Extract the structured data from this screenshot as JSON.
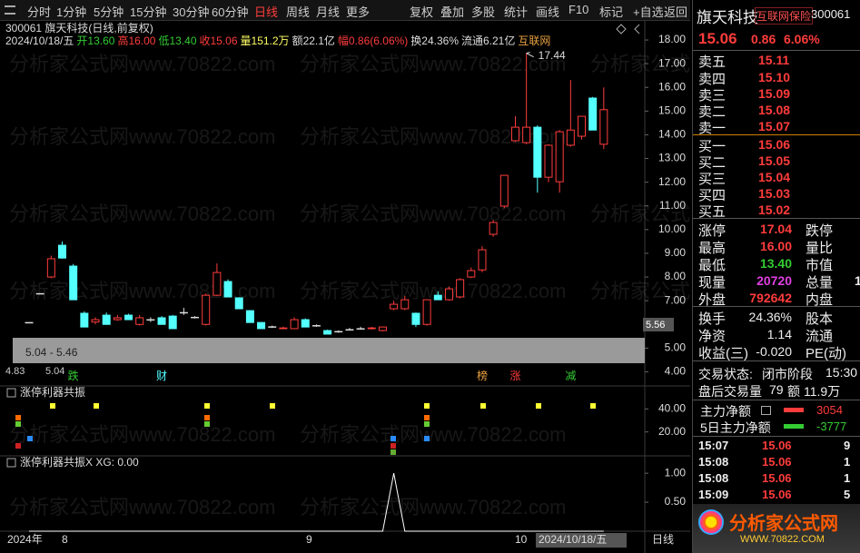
{
  "toolbar": {
    "left": [
      "分时",
      "1分钟",
      "5分钟",
      "15分钟",
      "30分钟",
      "60分钟",
      "日线",
      "周线",
      "月线",
      "更多"
    ],
    "active_index": 6,
    "right": [
      "复权",
      "叠加",
      "多股",
      "统计",
      "画线",
      "F10",
      "标记",
      "+自选",
      "返回"
    ]
  },
  "watermark": "分析家公式网www.70822.com",
  "kline": {
    "title": "300061 旗天科技(日线,前复权)",
    "info": [
      {
        "text": "2024/10/18/五",
        "color": "#dddddd"
      },
      {
        "text": "开13.60",
        "color": "#33cc33"
      },
      {
        "text": "高16.00",
        "color": "#ff3c3c"
      },
      {
        "text": "低13.40",
        "color": "#33cc33"
      },
      {
        "text": "收15.06",
        "color": "#ff3c3c"
      },
      {
        "text": "量151.2万",
        "color": "#ffff66"
      },
      {
        "text": "额22.1亿",
        "color": "#dddddd"
      },
      {
        "text": "幅0.86(6.06%)",
        "color": "#ff3c3c"
      },
      {
        "text": "换24.36%",
        "color": "#dddddd"
      },
      {
        "text": "流通6.21亿",
        "color": "#dddddd"
      },
      {
        "text": "互联网",
        "color": "#e8a040"
      }
    ],
    "ylim": [
      3.5,
      18.5
    ],
    "yticks": [
      {
        "value": 18,
        "label": "18.00"
      },
      {
        "value": 17,
        "label": "17.00"
      },
      {
        "value": 16,
        "label": "16.00"
      },
      {
        "value": 15,
        "label": "15.00"
      },
      {
        "value": 14,
        "label": "14.00"
      },
      {
        "value": 13,
        "label": "13.00"
      },
      {
        "value": 12,
        "label": "12.00"
      },
      {
        "value": 11,
        "label": "11.00"
      },
      {
        "value": 10,
        "label": "10.00"
      },
      {
        "value": 9,
        "label": "9.00"
      },
      {
        "value": 8,
        "label": "8.00"
      },
      {
        "value": 7,
        "label": "7.00"
      },
      {
        "value": 5,
        "label": "5.00"
      },
      {
        "value": 4,
        "label": "4.00"
      }
    ],
    "cursor_label": "5.56",
    "band_label": "5.04 - 5.46",
    "low_labels": [
      "4.83",
      "5.04"
    ],
    "peak_label": "17.44",
    "peak_index": 45,
    "candles": [
      {
        "open": 6.08,
        "high": 6.08,
        "low": 6.08,
        "close": 6.08
      },
      {
        "open": 7.3,
        "high": 7.3,
        "low": 7.3,
        "close": 7.3
      },
      {
        "open": 8.0,
        "high": 8.9,
        "low": 7.95,
        "close": 8.77
      },
      {
        "open": 9.34,
        "high": 9.5,
        "low": 8.77,
        "close": 8.8
      },
      {
        "open": 8.46,
        "high": 8.55,
        "low": 7.04,
        "close": 7.04
      },
      {
        "open": 6.47,
        "high": 6.55,
        "low": 5.89,
        "close": 5.89
      },
      {
        "open": 6.1,
        "high": 6.3,
        "low": 6.0,
        "close": 6.2
      },
      {
        "open": 6.39,
        "high": 6.5,
        "low": 6.0,
        "close": 6.0
      },
      {
        "open": 6.2,
        "high": 6.4,
        "low": 6.15,
        "close": 6.28
      },
      {
        "open": 6.39,
        "high": 6.45,
        "low": 6.2,
        "close": 6.2
      },
      {
        "open": 6.0,
        "high": 6.4,
        "low": 5.95,
        "close": 6.28
      },
      {
        "open": 6.2,
        "high": 6.3,
        "low": 6.1,
        "close": 6.2
      },
      {
        "open": 6.28,
        "high": 6.35,
        "low": 6.0,
        "close": 6.0
      },
      {
        "open": 6.35,
        "high": 6.4,
        "low": 5.82,
        "close": 5.82
      },
      {
        "open": 6.5,
        "high": 6.7,
        "low": 6.4,
        "close": 6.5
      },
      {
        "open": 6.3,
        "high": 6.35,
        "low": 6.25,
        "close": 6.3
      },
      {
        "open": 6.0,
        "high": 7.3,
        "low": 5.95,
        "close": 7.23
      },
      {
        "open": 7.23,
        "high": 8.57,
        "low": 7.2,
        "close": 8.19
      },
      {
        "open": 7.81,
        "high": 7.9,
        "low": 7.16,
        "close": 7.16
      },
      {
        "open": 7.12,
        "high": 7.15,
        "low": 6.66,
        "close": 6.66
      },
      {
        "open": 6.58,
        "high": 6.6,
        "low": 6.08,
        "close": 6.08
      },
      {
        "open": 6.08,
        "high": 6.1,
        "low": 5.82,
        "close": 5.82
      },
      {
        "open": 5.9,
        "high": 5.95,
        "low": 5.85,
        "close": 5.9
      },
      {
        "open": 5.82,
        "high": 5.9,
        "low": 5.8,
        "close": 5.85
      },
      {
        "open": 5.82,
        "high": 6.3,
        "low": 5.8,
        "close": 6.2
      },
      {
        "open": 6.2,
        "high": 6.25,
        "low": 5.89,
        "close": 5.89
      },
      {
        "open": 5.95,
        "high": 6.0,
        "low": 5.9,
        "close": 5.95
      },
      {
        "open": 5.74,
        "high": 5.78,
        "low": 5.59,
        "close": 5.59
      },
      {
        "open": 5.7,
        "high": 5.75,
        "low": 5.65,
        "close": 5.7
      },
      {
        "open": 5.78,
        "high": 5.85,
        "low": 5.75,
        "close": 5.78
      },
      {
        "open": 5.82,
        "high": 5.9,
        "low": 5.8,
        "close": 5.82
      },
      {
        "open": 5.82,
        "high": 5.9,
        "low": 5.78,
        "close": 5.85
      },
      {
        "open": 5.74,
        "high": 5.9,
        "low": 5.7,
        "close": 5.89
      },
      {
        "open": 6.66,
        "high": 7.0,
        "low": 6.6,
        "close": 6.85
      },
      {
        "open": 6.66,
        "high": 7.2,
        "low": 6.6,
        "close": 7.04
      },
      {
        "open": 6.47,
        "high": 6.5,
        "low": 5.89,
        "close": 6.0
      },
      {
        "open": 6.0,
        "high": 7.0,
        "low": 5.95,
        "close": 7.04
      },
      {
        "open": 7.23,
        "high": 7.4,
        "low": 7.04,
        "close": 7.04
      },
      {
        "open": 7.04,
        "high": 7.6,
        "low": 7.0,
        "close": 7.5
      },
      {
        "open": 7.16,
        "high": 7.95,
        "low": 7.1,
        "close": 7.89
      },
      {
        "open": 8.0,
        "high": 8.4,
        "low": 7.95,
        "close": 8.27
      },
      {
        "open": 8.3,
        "high": 9.3,
        "low": 8.2,
        "close": 9.15
      },
      {
        "open": 9.8,
        "high": 10.4,
        "low": 9.7,
        "close": 10.3
      },
      {
        "open": 10.99,
        "high": 12.3,
        "low": 10.9,
        "close": 12.29
      },
      {
        "open": 13.75,
        "high": 14.78,
        "low": 13.7,
        "close": 14.32
      },
      {
        "open": 13.67,
        "high": 17.44,
        "low": 13.6,
        "close": 14.32
      },
      {
        "open": 14.32,
        "high": 14.4,
        "low": 11.56,
        "close": 12.21
      },
      {
        "open": 12.21,
        "high": 13.6,
        "low": 12.0,
        "close": 13.56
      },
      {
        "open": 12.02,
        "high": 14.2,
        "low": 11.56,
        "close": 14.13
      },
      {
        "open": 13.56,
        "high": 16.31,
        "low": 13.5,
        "close": 14.2
      },
      {
        "open": 13.94,
        "high": 14.7,
        "low": 13.8,
        "close": 14.78
      },
      {
        "open": 15.55,
        "high": 15.6,
        "low": 14.2,
        "close": 14.2
      },
      {
        "open": 13.6,
        "high": 16.0,
        "low": 13.4,
        "close": 15.06
      }
    ],
    "signals": [
      {
        "text": "跌",
        "index": 4,
        "color": "#33cc33"
      },
      {
        "text": "财",
        "index": 12,
        "color": "#54ffff"
      },
      {
        "text": "榜",
        "index": 41,
        "color": "#e8a040"
      },
      {
        "text": "涨",
        "index": 44,
        "color": "#ff3c3c"
      },
      {
        "text": "减",
        "index": 49,
        "color": "#33cc33"
      }
    ],
    "x_labels": [
      "2024年",
      "8",
      "9",
      "10",
      "2024/10/18/五",
      "日线"
    ]
  },
  "indicator1": {
    "title": "涨停利器共振",
    "ylim": [
      0,
      60
    ],
    "yticks": [
      {
        "value": 40,
        "label": "40.00"
      },
      {
        "value": 20,
        "label": "20.00"
      }
    ]
  },
  "indicator2": {
    "title": "涨停利器共振X XG: 0.00",
    "ylim": [
      0,
      1.3
    ],
    "yticks": [
      {
        "value": 1,
        "label": "1.00"
      },
      {
        "value": 0.5,
        "label": "0.50"
      }
    ],
    "values": [
      0,
      0,
      0,
      0,
      0,
      0,
      0,
      0,
      0,
      0,
      0,
      0,
      0,
      0,
      0,
      0,
      0,
      0,
      0,
      0,
      0,
      0,
      0,
      0,
      0,
      0,
      0,
      0,
      0,
      0,
      0,
      0,
      0,
      1,
      0,
      0,
      0,
      0,
      0,
      0,
      0,
      0,
      0,
      0,
      0,
      0,
      0,
      0,
      0,
      0,
      0,
      0,
      0
    ]
  },
  "quote": {
    "name": "旗天科技",
    "tag": "互联网保险",
    "code": "300061",
    "price": "15.06",
    "change": "0.86",
    "pct": "6.06%"
  },
  "sell": [
    [
      "卖五",
      "15.11"
    ],
    [
      "卖四",
      "15.10"
    ],
    [
      "卖三",
      "15.09"
    ],
    [
      "卖二",
      "15.08"
    ],
    [
      "卖一",
      "15.07"
    ]
  ],
  "buy": [
    [
      "买一",
      "15.06"
    ],
    [
      "买二",
      "15.05"
    ],
    [
      "买三",
      "15.04"
    ],
    [
      "买四",
      "15.03"
    ],
    [
      "买五",
      "15.02"
    ]
  ],
  "stats": [
    [
      "涨停",
      "17.04",
      "跌停"
    ],
    [
      "最高",
      "16.00",
      "量比"
    ],
    [
      "最低",
      "13.40",
      "市值"
    ],
    [
      "现量",
      "20720",
      "总量",
      "1"
    ],
    [
      "外盘",
      "792642",
      "内盘"
    ]
  ],
  "stats2": [
    [
      "换手",
      "24.36%",
      "股本"
    ],
    [
      "净资",
      "1.14",
      "流通"
    ],
    [
      "收益(三)",
      "-0.020",
      "PE(动)"
    ]
  ],
  "status": [
    [
      "交易状态:",
      "闭市阶段",
      "15:30"
    ],
    [
      "盘后交易量",
      "79",
      "额",
      "11.9万"
    ]
  ],
  "flows": [
    {
      "label": "主力净额",
      "value": "3054"
    },
    {
      "label": "5日主力净额",
      "value": "-3777"
    }
  ],
  "ticks": [
    [
      "15:07",
      "15.06",
      "9"
    ],
    [
      "15:08",
      "15.06",
      "1"
    ],
    [
      "15:08",
      "15.06",
      "1"
    ],
    [
      "15:09",
      "15.06",
      "5"
    ]
  ],
  "logo": {
    "title": "分析家公式网",
    "url": "WWW.70822.COM"
  }
}
